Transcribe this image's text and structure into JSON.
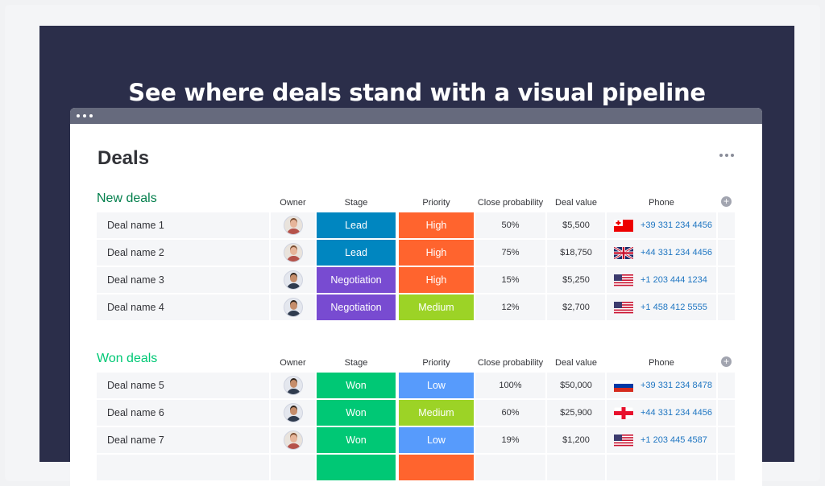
{
  "hero": {
    "title": "See where deals stand with a visual pipeline"
  },
  "board": {
    "title": "Deals"
  },
  "columns": {
    "owner": "Owner",
    "stage": "Stage",
    "priority": "Priority",
    "close_probability": "Close probability",
    "deal_value": "Deal value",
    "phone": "Phone"
  },
  "colors": {
    "hero_bg": "#2b2e4a",
    "window_bar": "#666a7d",
    "new_deals_group": "#037f4c",
    "won_deals_group": "#00c875",
    "stage_lead": "#0086c0",
    "stage_negotiation": "#784bd1",
    "stage_won": "#00c875",
    "priority_high": "#ff642e",
    "priority_medium": "#9cd326",
    "priority_low": "#579bfc",
    "phone_link": "#1f76c2"
  },
  "groups": [
    {
      "name": "New deals",
      "rows": [
        {
          "name": "Deal name 1",
          "owner_icon": "woman-avatar-icon",
          "stage": "Lead",
          "priority": "High",
          "probability": "50%",
          "value": "$5,500",
          "flag_icon": "tonga-flag-icon",
          "phone": "+39 331 234 4456"
        },
        {
          "name": "Deal name 2",
          "owner_icon": "woman-avatar-icon",
          "stage": "Lead",
          "priority": "High",
          "probability": "75%",
          "value": "$18,750",
          "flag_icon": "uk-flag-icon",
          "phone": "+44 331 234 4456"
        },
        {
          "name": "Deal name 3",
          "owner_icon": "man-avatar-icon",
          "stage": "Negotiation",
          "priority": "High",
          "probability": "15%",
          "value": "$5,250",
          "flag_icon": "us-flag-icon",
          "phone": "+1 203 444 1234"
        },
        {
          "name": "Deal name 4",
          "owner_icon": "man-avatar-icon",
          "stage": "Negotiation",
          "priority": "Medium",
          "probability": "12%",
          "value": "$2,700",
          "flag_icon": "us-flag-icon",
          "phone": "+1 458 412 5555"
        }
      ]
    },
    {
      "name": "Won deals",
      "rows": [
        {
          "name": "Deal name 5",
          "owner_icon": "man-avatar-icon",
          "stage": "Won",
          "priority": "Low",
          "probability": "100%",
          "value": "$50,000",
          "flag_icon": "russia-flag-icon",
          "phone": "+39 331 234 8478"
        },
        {
          "name": "Deal name 6",
          "owner_icon": "man-avatar-icon",
          "stage": "Won",
          "priority": "Medium",
          "probability": "60%",
          "value": "$25,900",
          "flag_icon": "cross-flag-icon",
          "phone": "+44 331 234 4456"
        },
        {
          "name": "Deal name 7",
          "owner_icon": "woman-avatar-icon",
          "stage": "Won",
          "priority": "Low",
          "probability": "19%",
          "value": "$1,200",
          "flag_icon": "us-flag-icon",
          "phone": "+1 203 445 4587"
        }
      ]
    }
  ]
}
